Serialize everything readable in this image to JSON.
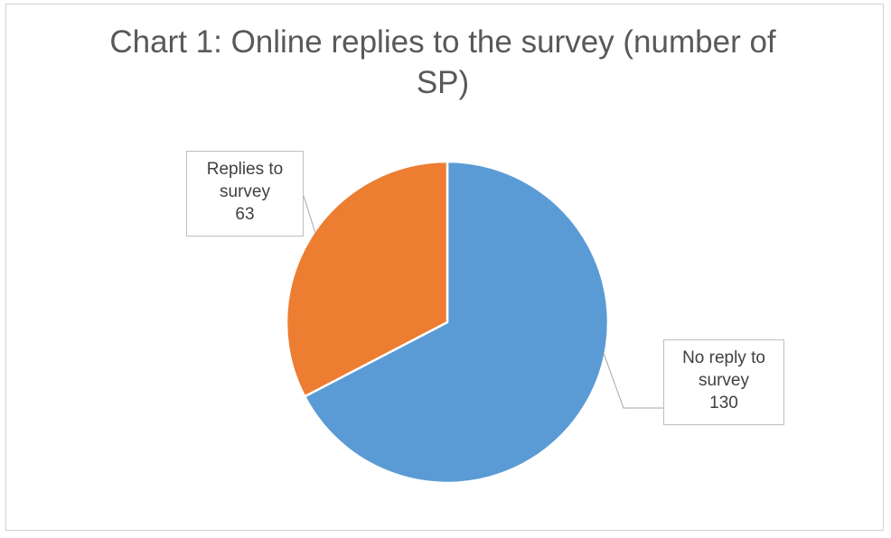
{
  "chart_data": {
    "type": "pie",
    "title": "Chart 1: Online replies to the survey (number of SP)",
    "slices": [
      {
        "label_lines": [
          "No reply to",
          "survey"
        ],
        "value": 130,
        "color": "#5b9bd5"
      },
      {
        "label_lines": [
          "Replies to",
          "survey"
        ],
        "value": 63,
        "color": "#ed7d31"
      }
    ],
    "start_angle_deg": 0,
    "direction": "clockwise",
    "legend": "none",
    "data_labels": "outside-with-leader-lines"
  }
}
